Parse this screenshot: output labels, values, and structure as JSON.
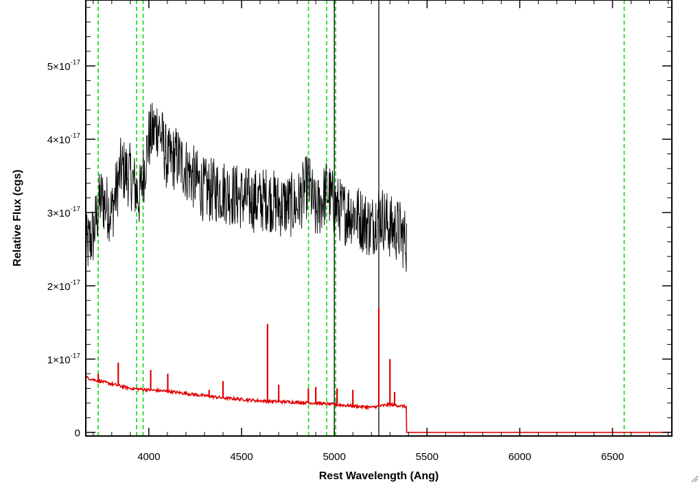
{
  "chart_data": {
    "type": "line",
    "title": "",
    "xlabel": "Rest Wavelength (Ang)",
    "ylabel": "Relative Flux (cgs)",
    "xlim": [
      3660,
      6820
    ],
    "ylim": [
      -0.05,
      5.9
    ],
    "y_scale_label": "×10^-17",
    "x_ticks": [
      4000,
      4500,
      5000,
      5500,
      6000,
      6500
    ],
    "y_ticks": [
      {
        "value": 0,
        "label": "0"
      },
      {
        "value": 1,
        "mantissa": "1×10",
        "exp": "-17"
      },
      {
        "value": 2,
        "mantissa": "2×10",
        "exp": "-17"
      },
      {
        "value": 3,
        "mantissa": "3×10",
        "exp": "-17"
      },
      {
        "value": 4,
        "mantissa": "4×10",
        "exp": "-17"
      },
      {
        "value": 5,
        "mantissa": "5×10",
        "exp": "-17"
      }
    ],
    "grid": false,
    "legend": "none",
    "series": [
      {
        "color": "#000000",
        "x": [
          3660,
          3700,
          3740,
          3800,
          3850,
          3900,
          3950,
          4000,
          4050,
          4100,
          4150,
          4200,
          4300,
          4400,
          4500,
          4600,
          4640,
          4700,
          4800,
          4860,
          4900,
          4960,
          5000,
          5050,
          5100,
          5150,
          5200,
          5240,
          5300,
          5350,
          5390
        ],
        "y": [
          2.5,
          2.7,
          3.2,
          3.0,
          3.6,
          3.5,
          3.2,
          4.0,
          4.2,
          3.7,
          3.75,
          3.6,
          3.3,
          3.3,
          3.2,
          3.15,
          3.2,
          3.1,
          3.1,
          3.4,
          3.0,
          3.3,
          3.1,
          3.0,
          3.0,
          2.9,
          2.8,
          3.0,
          2.8,
          2.75,
          2.6
        ]
      },
      {
        "color": "#e00000",
        "x": [
          3660,
          3700,
          3800,
          3900,
          4000,
          4100,
          4200,
          4300,
          4400,
          4500,
          4600,
          4700,
          4800,
          4900,
          5000,
          5100,
          5200,
          5300,
          5390,
          5400,
          5500,
          6000,
          6500,
          6820
        ],
        "y": [
          0.75,
          0.72,
          0.66,
          0.6,
          0.58,
          0.56,
          0.53,
          0.5,
          0.47,
          0.45,
          0.43,
          0.42,
          0.41,
          0.4,
          0.38,
          0.36,
          0.34,
          0.38,
          0.35,
          0.0,
          0.0,
          0.0,
          0.0,
          0.0
        ]
      }
    ],
    "emission_spikes": [
      {
        "x": 3727,
        "y": 0.8
      },
      {
        "x": 3835,
        "y": 0.95
      },
      {
        "x": 4010,
        "y": 0.85
      },
      {
        "x": 4102,
        "y": 0.8
      },
      {
        "x": 4325,
        "y": 0.58
      },
      {
        "x": 4400,
        "y": 0.7
      },
      {
        "x": 4640,
        "y": 1.48
      },
      {
        "x": 4700,
        "y": 0.65
      },
      {
        "x": 4860,
        "y": 0.6
      },
      {
        "x": 4900,
        "y": 0.62
      },
      {
        "x": 5015,
        "y": 0.6
      },
      {
        "x": 5100,
        "y": 0.58
      },
      {
        "x": 5240,
        "y": 1.7
      },
      {
        "x": 5300,
        "y": 1.0
      },
      {
        "x": 5325,
        "y": 0.55
      }
    ],
    "vertical_lines": [
      {
        "x": 3727,
        "style": "dashed",
        "color": "#22dd22"
      },
      {
        "x": 3934,
        "style": "dashed",
        "color": "#22dd22"
      },
      {
        "x": 3969,
        "style": "dashed",
        "color": "#22dd22"
      },
      {
        "x": 4861,
        "style": "dashed",
        "color": "#22dd22"
      },
      {
        "x": 4959,
        "style": "dashed",
        "color": "#22dd22"
      },
      {
        "x": 5007,
        "style": "dashed",
        "color": "#22dd22"
      },
      {
        "x": 6563,
        "style": "dashed",
        "color": "#22dd22"
      },
      {
        "x": 5000,
        "style": "solid",
        "color": "#000000"
      },
      {
        "x": 5240,
        "style": "solid",
        "color": "#000000"
      }
    ]
  }
}
